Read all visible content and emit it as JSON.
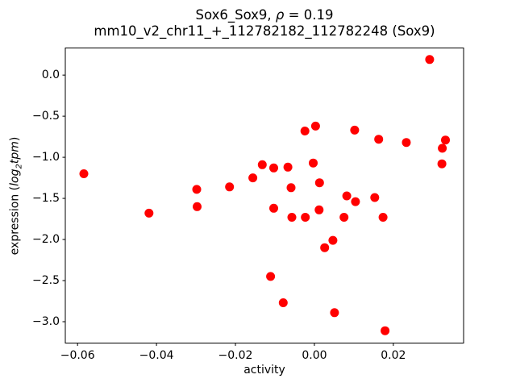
{
  "chart_data": {
    "type": "scatter",
    "title": "Sox6_Sox9, ρ = 0.19",
    "title_parts": {
      "prefix": "Sox6_Sox9, ",
      "rho": "ρ",
      "suffix": " = 0.19"
    },
    "subtitle": "mm10_v2_chr11_+_112782182_112782248 (Sox9)",
    "xlabel": "activity",
    "ylabel": "expression (log2tpm)",
    "ylabel_parts": {
      "prefix": "expression (",
      "log": "log",
      "sub": "2",
      "tpm": "tpm",
      "suffix": ")"
    },
    "correlation_rho": 0.19,
    "marker_color": "#ff0000",
    "marker_radius_px": 5.5,
    "axis_color": "#000000",
    "grid": false,
    "legend_position": "none",
    "xlim": [
      -0.0631,
      0.0378
    ],
    "ylim": [
      -3.26,
      0.33
    ],
    "x_ticks": {
      "values": [
        -0.06,
        -0.04,
        -0.02,
        0.0,
        0.02
      ],
      "labels": [
        "−0.06",
        "−0.04",
        "−0.02",
        "0.00",
        "0.02"
      ]
    },
    "y_ticks": {
      "values": [
        0.0,
        -0.5,
        -1.0,
        -1.5,
        -2.0,
        -2.5,
        -3.0
      ],
      "labels": [
        "0.0",
        "−0.5",
        "−1.0",
        "−1.5",
        "−2.0",
        "−2.5",
        "−3.0"
      ]
    },
    "points": [
      [
        -0.0584,
        -1.2
      ],
      [
        -0.0419,
        -1.68
      ],
      [
        -0.0298,
        -1.39
      ],
      [
        -0.0297,
        -1.6
      ],
      [
        -0.0215,
        -1.36
      ],
      [
        -0.0156,
        -1.25
      ],
      [
        -0.0132,
        -1.09
      ],
      [
        -0.0103,
        -1.13
      ],
      [
        -0.0067,
        -1.12
      ],
      [
        -0.0103,
        -1.62
      ],
      [
        -0.0059,
        -1.37
      ],
      [
        -0.0057,
        -1.73
      ],
      [
        -0.0023,
        -1.73
      ],
      [
        -0.0024,
        -0.68
      ],
      [
        0.0003,
        -0.62
      ],
      [
        -0.0003,
        -1.07
      ],
      [
        0.0013,
        -1.31
      ],
      [
        0.0012,
        -1.64
      ],
      [
        0.0051,
        -2.89
      ],
      [
        0.0026,
        -2.1
      ],
      [
        0.0047,
        -2.01
      ],
      [
        0.0082,
        -1.47
      ],
      [
        0.0104,
        -1.54
      ],
      [
        0.0102,
        -0.67
      ],
      [
        0.0153,
        -1.49
      ],
      [
        0.0075,
        -1.73
      ],
      [
        0.0174,
        -1.73
      ],
      [
        0.0163,
        -0.78
      ],
      [
        0.0233,
        -0.82
      ],
      [
        0.0292,
        0.19
      ],
      [
        0.0332,
        -0.79
      ],
      [
        0.0324,
        -0.89
      ],
      [
        0.0323,
        -1.08
      ],
      [
        -0.0111,
        -2.45
      ],
      [
        -0.0079,
        -2.77
      ],
      [
        0.0179,
        -3.11
      ]
    ]
  }
}
